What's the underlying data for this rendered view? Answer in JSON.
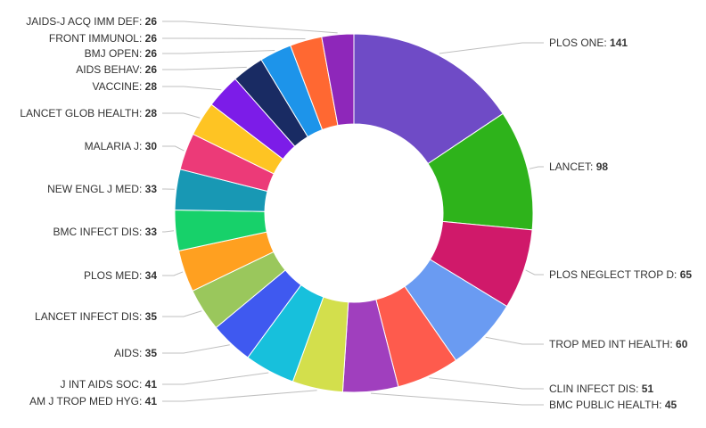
{
  "chart_data": {
    "type": "pie",
    "donut": true,
    "legend": "none",
    "slices": [
      {
        "label": "PLOS ONE",
        "value": 141,
        "color": "#6f4bc6"
      },
      {
        "label": "LANCET",
        "value": 98,
        "color": "#2eb31b"
      },
      {
        "label": "PLOS NEGLECT TROP D",
        "value": 65,
        "color": "#d0196a"
      },
      {
        "label": "TROP MED INT HEALTH",
        "value": 60,
        "color": "#6a9bf2"
      },
      {
        "label": "CLIN INFECT DIS",
        "value": 51,
        "color": "#fe5b4d"
      },
      {
        "label": "BMC PUBLIC HEALTH",
        "value": 45,
        "color": "#a03fbe"
      },
      {
        "label": "AM J TROP MED HYG",
        "value": 41,
        "color": "#d3df4c"
      },
      {
        "label": "J INT AIDS SOC",
        "value": 41,
        "color": "#17c0dc"
      },
      {
        "label": "AIDS",
        "value": 35,
        "color": "#3f59f0"
      },
      {
        "label": "LANCET INFECT DIS",
        "value": 35,
        "color": "#9ac75c"
      },
      {
        "label": "PLOS MED",
        "value": 34,
        "color": "#ffa020"
      },
      {
        "label": "BMC INFECT DIS",
        "value": 33,
        "color": "#17d16a"
      },
      {
        "label": "NEW ENGL J MED",
        "value": 33,
        "color": "#1898b4"
      },
      {
        "label": "MALARIA J",
        "value": 30,
        "color": "#ec3a78"
      },
      {
        "label": "LANCET GLOB HEALTH",
        "value": 28,
        "color": "#fec423"
      },
      {
        "label": "VACCINE",
        "value": 28,
        "color": "#7c1ce8"
      },
      {
        "label": "AIDS BEHAV",
        "value": 26,
        "color": "#192b63"
      },
      {
        "label": "BMJ OPEN",
        "value": 26,
        "color": "#1d94ea"
      },
      {
        "label": "FRONT IMMUNOL",
        "value": 26,
        "color": "#ff6832"
      },
      {
        "label": "JAIDS-J ACQ IMM DEF",
        "value": 26,
        "color": "#8e27ba"
      }
    ]
  }
}
